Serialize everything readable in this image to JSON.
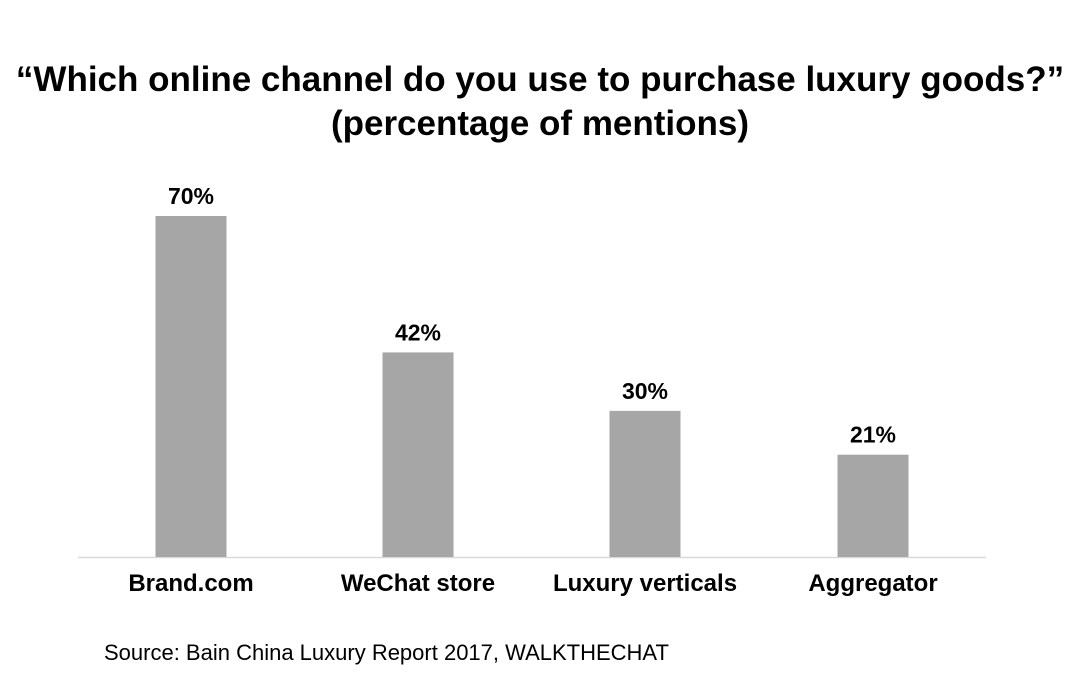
{
  "chart_data": {
    "type": "bar",
    "title": "“Which online channel do you use to purchase luxury goods?”",
    "subtitle": "(percentage of mentions)",
    "categories": [
      "Brand.com",
      "WeChat store",
      "Luxury verticals",
      "Aggregator"
    ],
    "values": [
      70,
      42,
      30,
      21
    ],
    "data_labels": [
      "70%",
      "42%",
      "30%",
      "21%"
    ],
    "ylim": [
      0,
      70
    ],
    "grid": false,
    "legend": "none",
    "colors": {
      "bar": "#a6a6a6",
      "axis": "#d9d9d9",
      "text": "#000000"
    }
  },
  "source": "Source: Bain China Luxury Report 2017, WALKTHECHAT"
}
